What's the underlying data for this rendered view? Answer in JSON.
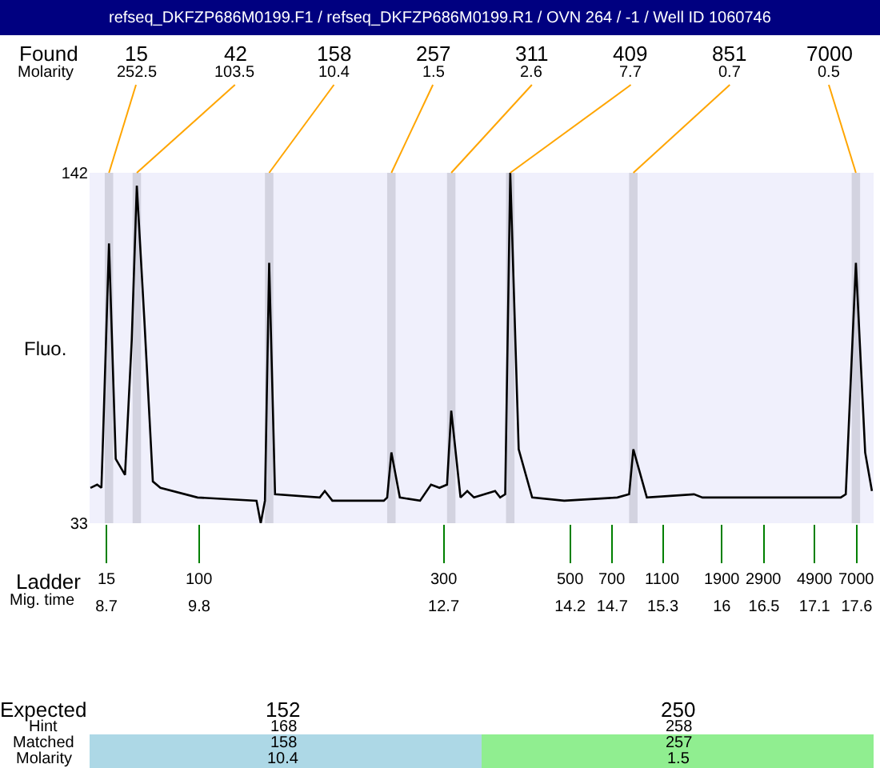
{
  "chart_data": {
    "type": "line",
    "title": "refseq_DKFZP686M0199.F1 / refseq_DKFZP686M0199.R1 / OVN 264 / -1 / Well ID 1060746",
    "ylabel": "Fluo.",
    "x": [
      8.51,
      8.59,
      8.64,
      8.66,
      8.73,
      8.81,
      8.92,
      9.0,
      9.06,
      9.15,
      9.25,
      9.34,
      9.78,
      10.48,
      10.53,
      10.58,
      10.63,
      10.7,
      11.23,
      11.29,
      11.38,
      11.99,
      12.03,
      12.08,
      12.18,
      12.42,
      12.55,
      12.65,
      12.74,
      12.79,
      12.9,
      12.98,
      13.06,
      13.31,
      13.37,
      13.43,
      13.49,
      13.59,
      13.75,
      14.13,
      14.76,
      14.9,
      14.95,
      15.11,
      15.67,
      15.77,
      17.41,
      17.47,
      17.59,
      17.7,
      17.78
    ],
    "series": [
      {
        "color": "#000000",
        "values": [
          44,
          45,
          44,
          60,
          120,
          53,
          48,
          90,
          138,
          96,
          46,
          44,
          41,
          40,
          33,
          40,
          114,
          42,
          41,
          43,
          40,
          40,
          41,
          55,
          41,
          40,
          45,
          44,
          45,
          68,
          41,
          43,
          41,
          43,
          41,
          42,
          142,
          56,
          41,
          40,
          41,
          42,
          56,
          41,
          42,
          41,
          41,
          42,
          114,
          55,
          43
        ]
      }
    ],
    "xlim": [
      8.5,
      17.8
    ],
    "ylim": [
      33,
      142
    ],
    "yticks": [
      33,
      142
    ],
    "xticks": [
      8.7,
      9.8,
      12.7,
      14.2,
      14.7,
      15.3,
      16,
      16.5,
      17.1,
      17.6
    ],
    "grid": false,
    "marker": "none",
    "line_style": "solid",
    "bands": [
      {
        "axis": "x",
        "from": 8.68,
        "to": 8.78,
        "color": "#d3d3e0"
      },
      {
        "axis": "x",
        "from": 9.01,
        "to": 9.11,
        "color": "#d3d3e0"
      },
      {
        "axis": "x",
        "from": 10.58,
        "to": 10.68,
        "color": "#d3d3e0"
      },
      {
        "axis": "x",
        "from": 12.03,
        "to": 12.13,
        "color": "#d3d3e0"
      },
      {
        "axis": "x",
        "from": 12.74,
        "to": 12.84,
        "color": "#d3d3e0"
      },
      {
        "axis": "x",
        "from": 13.44,
        "to": 13.54,
        "color": "#d3d3e0"
      },
      {
        "axis": "x",
        "from": 14.9,
        "to": 15.0,
        "color": "#d3d3e0"
      },
      {
        "axis": "x",
        "from": 17.54,
        "to": 17.64,
        "color": "#d3d3e0"
      }
    ],
    "annotations": [
      "Found",
      "Molarity",
      "Ladder",
      "Mig. time",
      "Expected",
      "Hint",
      "Matched",
      "Molarity",
      "152",
      "168",
      "158",
      "10.4",
      "250",
      "258",
      "257",
      "1.5",
      "15",
      "100",
      "300",
      "500",
      "700",
      "1100",
      "1900",
      "2900",
      "4900",
      "7000",
      {
        "text": "15\n252.5",
        "x": 8.73,
        "y": 142
      },
      {
        "text": "42\n103.5",
        "x": 9.06,
        "y": 142
      },
      {
        "text": "158\n10.4",
        "x": 10.63,
        "y": 142
      },
      {
        "text": "257\n1.5",
        "x": 12.08,
        "y": 142
      },
      {
        "text": "311\n2.6",
        "x": 12.79,
        "y": 142
      },
      {
        "text": "409\n7.7",
        "x": 13.49,
        "y": 142
      },
      {
        "text": "851\n0.7",
        "x": 14.95,
        "y": 142
      },
      {
        "text": "7000\n0.5",
        "x": 17.59,
        "y": 142
      }
    ]
  }
}
